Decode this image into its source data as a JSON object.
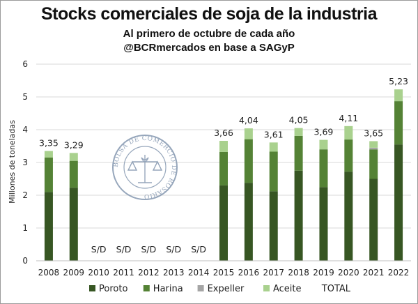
{
  "header": {
    "title": "Stocks comerciales de soja de la industria",
    "subtitle_line1": "Al primero de octubre de cada año",
    "subtitle_line2": "@BCRmercados en base a SAGyP"
  },
  "watermark": {
    "text": "BOLSA DE COMERCIO DE ROSARIO"
  },
  "colors": {
    "poroto": "#375623",
    "harina": "#548235",
    "expeller": "#a5a5a5",
    "aceite": "#a9d18e",
    "gridline": "#d9d9d9"
  },
  "chart_data": {
    "type": "bar",
    "stacked": true,
    "ylabel": "Millones de toneladas",
    "ylim": [
      0,
      6
    ],
    "yticks": [
      0,
      1,
      2,
      3,
      4,
      5,
      6
    ],
    "grid": true,
    "legend_position": "bottom",
    "categories": [
      "2008",
      "2009",
      "2010",
      "2011",
      "2012",
      "2013",
      "2014",
      "2015",
      "2016",
      "2017",
      "2018",
      "2019",
      "2020",
      "2021",
      "2022"
    ],
    "series": [
      {
        "name": "Poroto",
        "color_key": "poroto",
        "values": [
          2.1,
          2.23,
          null,
          null,
          null,
          null,
          null,
          2.3,
          2.38,
          2.12,
          2.75,
          2.25,
          2.72,
          2.5,
          3.55
        ]
      },
      {
        "name": "Harina",
        "color_key": "harina",
        "values": [
          1.05,
          0.82,
          null,
          null,
          null,
          null,
          null,
          1.02,
          1.33,
          1.21,
          1.06,
          1.15,
          0.98,
          0.9,
          1.32
        ]
      },
      {
        "name": "Expeller",
        "color_key": "expeller",
        "values": [
          0.0,
          0.0,
          null,
          null,
          null,
          null,
          null,
          0.0,
          0.0,
          0.0,
          0.0,
          0.0,
          0.0,
          0.05,
          0.0
        ]
      },
      {
        "name": "Aceite",
        "color_key": "aceite",
        "values": [
          0.2,
          0.24,
          null,
          null,
          null,
          null,
          null,
          0.34,
          0.33,
          0.28,
          0.24,
          0.29,
          0.41,
          0.2,
          0.36
        ]
      }
    ],
    "legend_extra": "TOTAL",
    "totals": [
      "3,35",
      "3,29",
      "S/D",
      "S/D",
      "S/D",
      "S/D",
      "S/D",
      "3,66",
      "4,04",
      "3,61",
      "4,05",
      "3,69",
      "4,11",
      "3,65",
      "5,23"
    ]
  }
}
